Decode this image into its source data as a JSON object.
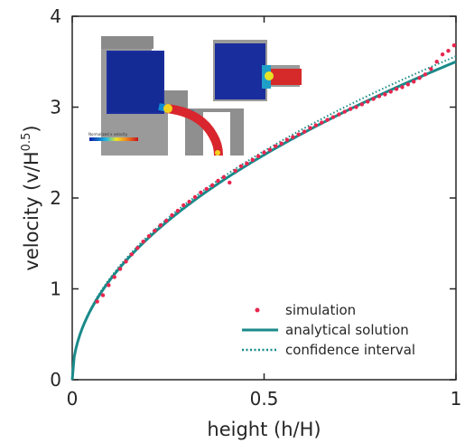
{
  "chart_data": {
    "type": "line",
    "xlabel": "height (h/H)",
    "ylabel_main": "velocity (v/H",
    "ylabel_sup": "0.5",
    "ylabel_close": ")",
    "xlim": [
      0,
      1
    ],
    "ylim": [
      0,
      4
    ],
    "x_ticks": [
      {
        "value": 0,
        "label": "0"
      },
      {
        "value": 0.5,
        "label": "0.5"
      },
      {
        "value": 1,
        "label": "1"
      }
    ],
    "y_ticks": [
      {
        "value": 0,
        "label": "0"
      },
      {
        "value": 1,
        "label": "1"
      },
      {
        "value": 2,
        "label": "2"
      },
      {
        "value": 3,
        "label": "3"
      },
      {
        "value": 4,
        "label": "4"
      }
    ],
    "grid": false,
    "legend_position": "bottom-right",
    "series": [
      {
        "name": "simulation",
        "kind": "scatter",
        "color": "#e8264f",
        "x": [
          0.065,
          0.08,
          0.095,
          0.11,
          0.125,
          0.14,
          0.155,
          0.17,
          0.185,
          0.2,
          0.215,
          0.23,
          0.245,
          0.26,
          0.275,
          0.29,
          0.305,
          0.32,
          0.335,
          0.35,
          0.365,
          0.38,
          0.395,
          0.41,
          0.425,
          0.44,
          0.455,
          0.47,
          0.485,
          0.5,
          0.515,
          0.53,
          0.545,
          0.56,
          0.575,
          0.59,
          0.605,
          0.62,
          0.635,
          0.65,
          0.665,
          0.68,
          0.695,
          0.71,
          0.725,
          0.74,
          0.755,
          0.77,
          0.785,
          0.8,
          0.815,
          0.83,
          0.845,
          0.86,
          0.875,
          0.89,
          0.905,
          0.92,
          0.935,
          0.95,
          0.965,
          0.98,
          0.995
        ],
        "y": [
          0.86,
          0.93,
          1.04,
          1.13,
          1.22,
          1.3,
          1.38,
          1.45,
          1.52,
          1.58,
          1.64,
          1.7,
          1.75,
          1.81,
          1.86,
          1.92,
          1.96,
          2.01,
          2.06,
          2.1,
          2.14,
          2.19,
          2.23,
          2.17,
          2.3,
          2.35,
          2.38,
          2.42,
          2.46,
          2.5,
          2.53,
          2.57,
          2.6,
          2.64,
          2.67,
          2.7,
          2.73,
          2.77,
          2.8,
          2.83,
          2.86,
          2.89,
          2.92,
          2.95,
          2.98,
          3.0,
          3.03,
          3.06,
          3.09,
          3.12,
          3.14,
          3.17,
          3.2,
          3.22,
          3.25,
          3.28,
          3.32,
          3.36,
          3.42,
          3.5,
          3.58,
          3.62,
          3.68
        ]
      },
      {
        "name": "analytical solution",
        "kind": "line",
        "color": "#1a8a8a",
        "formula": "y = 3.5 * sqrt(x)"
      },
      {
        "name": "confidence interval",
        "kind": "dotted-line",
        "color": "#1a8a8a",
        "formula": "y = 3.56 * sqrt(x)"
      }
    ]
  },
  "inset": {
    "colorbar_label": "Normalized x velocity"
  }
}
